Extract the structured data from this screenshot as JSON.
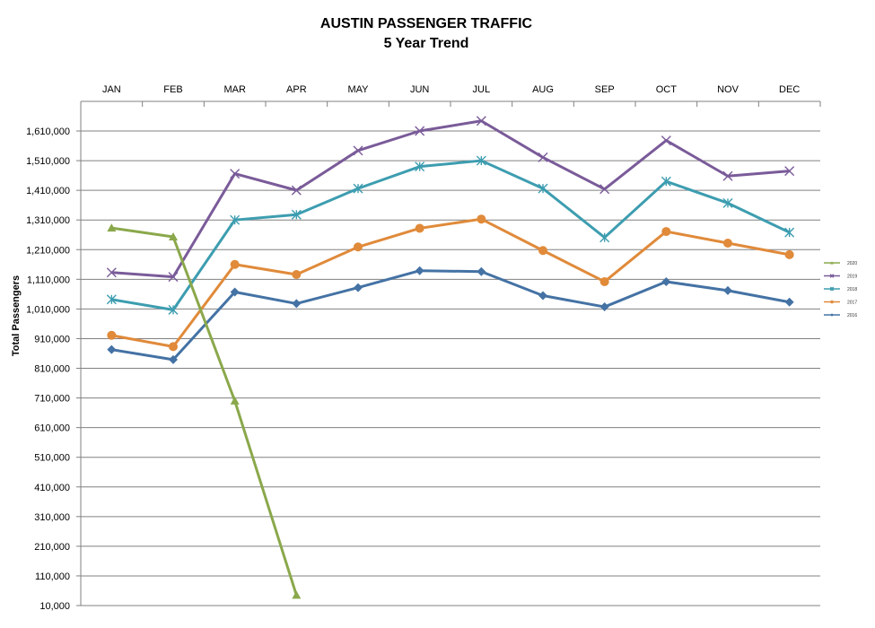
{
  "chart_data": {
    "type": "line",
    "title": "AUSTIN PASSENGER TRAFFIC",
    "subtitle": "5 Year Trend",
    "xlabel": "",
    "ylabel": "Total Passengers",
    "categories": [
      "JAN",
      "FEB",
      "MAR",
      "APR",
      "MAY",
      "JUN",
      "JUL",
      "AUG",
      "SEP",
      "OCT",
      "NOV",
      "DEC"
    ],
    "y_ticks": [
      "1,610,000",
      "1,510,000",
      "1,410,000",
      "1,310,000",
      "1,210,000",
      "1,110,000",
      "1,010,000",
      "910,000",
      "810,000",
      "710,000",
      "610,000",
      "510,000",
      "410,000",
      "310,000",
      "210,000",
      "110,000",
      "10,000"
    ],
    "ylim": [
      10000,
      1610000
    ],
    "grid": true,
    "legend_position": "right",
    "series": [
      {
        "name": "2020",
        "color": "#8aa84b",
        "marker": "triangle",
        "values": [
          1283000,
          1253000,
          700000,
          45000,
          null,
          null,
          null,
          null,
          null,
          null,
          null,
          null
        ]
      },
      {
        "name": "2019",
        "color": "#7a5b99",
        "marker": "x",
        "values": [
          1133000,
          1118000,
          1466000,
          1410000,
          1544000,
          1610000,
          1644000,
          1521000,
          1414000,
          1578000,
          1458000,
          1475000
        ]
      },
      {
        "name": "2018",
        "color": "#3d9db0",
        "marker": "star",
        "values": [
          1042000,
          1007000,
          1310000,
          1328000,
          1416000,
          1490000,
          1510000,
          1416000,
          1251000,
          1440000,
          1367000,
          1268000
        ]
      },
      {
        "name": "2017",
        "color": "#e08a3a",
        "marker": "circle",
        "values": [
          921000,
          883000,
          1160000,
          1126000,
          1219000,
          1282000,
          1313000,
          1207000,
          1102000,
          1271000,
          1232000,
          1193000
        ]
      },
      {
        "name": "2016",
        "color": "#4472a4",
        "marker": "diamond",
        "values": [
          873000,
          839000,
          1067000,
          1028000,
          1082000,
          1139000,
          1136000,
          1055000,
          1017000,
          1102000,
          1072000,
          1033000
        ]
      }
    ]
  }
}
